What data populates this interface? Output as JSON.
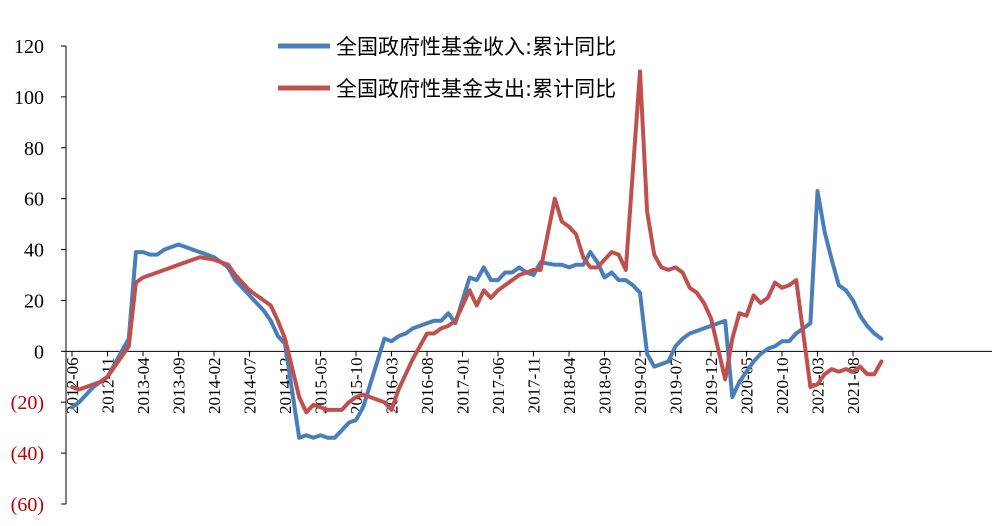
{
  "chart_data": {
    "type": "line",
    "title": "",
    "xlabel": "",
    "ylabel": "",
    "ylim": [
      -60,
      120
    ],
    "y_ticks": [
      120,
      100,
      80,
      60,
      40,
      20,
      0,
      -20,
      -40,
      -60
    ],
    "y_tick_labels": [
      "120",
      "100",
      "80",
      "60",
      "40",
      "20",
      "0",
      "(20)",
      "(40)",
      "(60)"
    ],
    "negative_tick_color": "#c00000",
    "grid": false,
    "legend_position": "top-center",
    "x_start": "2012-06",
    "x_tick_labels": [
      "2012-06",
      "2012-11",
      "2013-04",
      "2013-09",
      "2014-02",
      "2014-07",
      "2014-12",
      "2015-05",
      "2015-10",
      "2016-03",
      "2016-08",
      "2017-01",
      "2017-06",
      "2017-11",
      "2018-04",
      "2018-09",
      "2019-02",
      "2019-07",
      "2019-12",
      "2020-05",
      "2020-10",
      "2021-03",
      "2021-08"
    ],
    "series": [
      {
        "name": "全国政府性基金收入:累计同比",
        "color": "#4a7ebb",
        "points": [
          [
            "2012-06",
            -22
          ],
          [
            "2012-07",
            -20
          ],
          [
            "2012-08",
            -17
          ],
          [
            "2012-09",
            -14
          ],
          [
            "2012-10",
            -12
          ],
          [
            "2012-11",
            -10
          ],
          [
            "2013-02",
            5
          ],
          [
            "2013-03",
            39
          ],
          [
            "2013-04",
            39
          ],
          [
            "2013-05",
            38
          ],
          [
            "2013-06",
            38
          ],
          [
            "2013-07",
            40
          ],
          [
            "2013-08",
            41
          ],
          [
            "2013-09",
            42
          ],
          [
            "2013-10",
            41
          ],
          [
            "2013-11",
            40
          ],
          [
            "2013-12",
            39
          ],
          [
            "2014-02",
            37
          ],
          [
            "2014-03",
            35
          ],
          [
            "2014-04",
            33
          ],
          [
            "2014-05",
            28
          ],
          [
            "2014-06",
            25
          ],
          [
            "2014-07",
            22
          ],
          [
            "2014-08",
            19
          ],
          [
            "2014-09",
            16
          ],
          [
            "2014-10",
            12
          ],
          [
            "2014-11",
            6
          ],
          [
            "2014-12",
            3
          ],
          [
            "2015-02",
            -34
          ],
          [
            "2015-03",
            -33
          ],
          [
            "2015-04",
            -34
          ],
          [
            "2015-05",
            -33
          ],
          [
            "2015-06",
            -34
          ],
          [
            "2015-07",
            -34
          ],
          [
            "2015-08",
            -31
          ],
          [
            "2015-09",
            -28
          ],
          [
            "2015-10",
            -27
          ],
          [
            "2015-11",
            -22
          ],
          [
            "2015-12",
            -13
          ],
          [
            "2016-02",
            5
          ],
          [
            "2016-03",
            4
          ],
          [
            "2016-04",
            6
          ],
          [
            "2016-05",
            7
          ],
          [
            "2016-06",
            9
          ],
          [
            "2016-07",
            10
          ],
          [
            "2016-08",
            11
          ],
          [
            "2016-09",
            12
          ],
          [
            "2016-10",
            12
          ],
          [
            "2016-11",
            15
          ],
          [
            "2016-12",
            11
          ],
          [
            "2017-02",
            29
          ],
          [
            "2017-03",
            28
          ],
          [
            "2017-04",
            33
          ],
          [
            "2017-05",
            28
          ],
          [
            "2017-06",
            28
          ],
          [
            "2017-07",
            31
          ],
          [
            "2017-08",
            31
          ],
          [
            "2017-09",
            33
          ],
          [
            "2017-10",
            31
          ],
          [
            "2017-11",
            30
          ],
          [
            "2017-12",
            35
          ],
          [
            "2018-02",
            34
          ],
          [
            "2018-03",
            34
          ],
          [
            "2018-04",
            33
          ],
          [
            "2018-05",
            34
          ],
          [
            "2018-06",
            34
          ],
          [
            "2018-07",
            39
          ],
          [
            "2018-08",
            35
          ],
          [
            "2018-09",
            29
          ],
          [
            "2018-10",
            31
          ],
          [
            "2018-11",
            28
          ],
          [
            "2018-12",
            28
          ],
          [
            "2019-01",
            26
          ],
          [
            "2019-02",
            23
          ],
          [
            "2019-03",
            -1
          ],
          [
            "2019-04",
            -6
          ],
          [
            "2019-05",
            -5
          ],
          [
            "2019-06",
            -4
          ],
          [
            "2019-07",
            2
          ],
          [
            "2019-08",
            5
          ],
          [
            "2019-09",
            7
          ],
          [
            "2019-10",
            8
          ],
          [
            "2019-11",
            9
          ],
          [
            "2019-12",
            10
          ],
          [
            "2020-02",
            12
          ],
          [
            "2020-03",
            -18
          ],
          [
            "2020-04",
            -12
          ],
          [
            "2020-05",
            -8
          ],
          [
            "2020-06",
            -4
          ],
          [
            "2020-07",
            -1
          ],
          [
            "2020-08",
            1
          ],
          [
            "2020-09",
            2
          ],
          [
            "2020-10",
            4
          ],
          [
            "2020-11",
            4
          ],
          [
            "2020-12",
            7
          ],
          [
            "2021-02",
            11
          ],
          [
            "2021-03",
            63
          ],
          [
            "2021-04",
            47
          ],
          [
            "2021-05",
            36
          ],
          [
            "2021-06",
            26
          ],
          [
            "2021-07",
            24
          ],
          [
            "2021-08",
            20
          ],
          [
            "2021-09",
            14
          ],
          [
            "2021-10",
            10
          ],
          [
            "2021-11",
            7
          ],
          [
            "2021-12",
            5
          ]
        ]
      },
      {
        "name": "全国政府性基金支出:累计同比",
        "color": "#c0504d",
        "points": [
          [
            "2012-06",
            -14
          ],
          [
            "2012-07",
            -15
          ],
          [
            "2012-08",
            -14
          ],
          [
            "2012-09",
            -13
          ],
          [
            "2012-10",
            -12
          ],
          [
            "2012-11",
            -10
          ],
          [
            "2013-02",
            2
          ],
          [
            "2013-03",
            27
          ],
          [
            "2013-04",
            29
          ],
          [
            "2013-05",
            30
          ],
          [
            "2013-06",
            31
          ],
          [
            "2013-07",
            32
          ],
          [
            "2013-08",
            33
          ],
          [
            "2013-09",
            34
          ],
          [
            "2013-10",
            35
          ],
          [
            "2013-11",
            36
          ],
          [
            "2013-12",
            37
          ],
          [
            "2014-02",
            36
          ],
          [
            "2014-03",
            35
          ],
          [
            "2014-04",
            34
          ],
          [
            "2014-05",
            30
          ],
          [
            "2014-06",
            27
          ],
          [
            "2014-07",
            24
          ],
          [
            "2014-08",
            22
          ],
          [
            "2014-09",
            20
          ],
          [
            "2014-10",
            18
          ],
          [
            "2014-11",
            12
          ],
          [
            "2014-12",
            5
          ],
          [
            "2015-02",
            -18
          ],
          [
            "2015-03",
            -24
          ],
          [
            "2015-04",
            -21
          ],
          [
            "2015-05",
            -22
          ],
          [
            "2015-06",
            -23
          ],
          [
            "2015-07",
            -23
          ],
          [
            "2015-08",
            -23
          ],
          [
            "2015-09",
            -20
          ],
          [
            "2015-10",
            -18
          ],
          [
            "2015-11",
            -17
          ],
          [
            "2015-12",
            -18
          ],
          [
            "2016-02",
            -20
          ],
          [
            "2016-03",
            -23
          ],
          [
            "2016-04",
            -15
          ],
          [
            "2016-05",
            -9
          ],
          [
            "2016-06",
            -3
          ],
          [
            "2016-07",
            2
          ],
          [
            "2016-08",
            7
          ],
          [
            "2016-09",
            7
          ],
          [
            "2016-10",
            9
          ],
          [
            "2016-11",
            10
          ],
          [
            "2016-12",
            12
          ],
          [
            "2017-02",
            24
          ],
          [
            "2017-03",
            18
          ],
          [
            "2017-04",
            24
          ],
          [
            "2017-05",
            21
          ],
          [
            "2017-06",
            24
          ],
          [
            "2017-07",
            26
          ],
          [
            "2017-08",
            28
          ],
          [
            "2017-09",
            30
          ],
          [
            "2017-10",
            31
          ],
          [
            "2017-11",
            32
          ],
          [
            "2017-12",
            32
          ],
          [
            "2018-02",
            60
          ],
          [
            "2018-03",
            51
          ],
          [
            "2018-04",
            49
          ],
          [
            "2018-05",
            46
          ],
          [
            "2018-06",
            37
          ],
          [
            "2018-07",
            33
          ],
          [
            "2018-08",
            33
          ],
          [
            "2018-09",
            36
          ],
          [
            "2018-10",
            39
          ],
          [
            "2018-11",
            38
          ],
          [
            "2018-12",
            32
          ],
          [
            "2019-02",
            110
          ],
          [
            "2019-03",
            55
          ],
          [
            "2019-04",
            38
          ],
          [
            "2019-05",
            33
          ],
          [
            "2019-06",
            32
          ],
          [
            "2019-07",
            33
          ],
          [
            "2019-08",
            31
          ],
          [
            "2019-09",
            25
          ],
          [
            "2019-10",
            23
          ],
          [
            "2019-11",
            19
          ],
          [
            "2019-12",
            13
          ],
          [
            "2020-02",
            -11
          ],
          [
            "2020-03",
            5
          ],
          [
            "2020-04",
            15
          ],
          [
            "2020-05",
            14
          ],
          [
            "2020-06",
            22
          ],
          [
            "2020-07",
            19
          ],
          [
            "2020-08",
            21
          ],
          [
            "2020-09",
            27
          ],
          [
            "2020-10",
            25
          ],
          [
            "2020-11",
            26
          ],
          [
            "2020-12",
            28
          ],
          [
            "2021-02",
            -14
          ],
          [
            "2021-03",
            -13
          ],
          [
            "2021-04",
            -9
          ],
          [
            "2021-05",
            -7
          ],
          [
            "2021-06",
            -8
          ],
          [
            "2021-07",
            -7
          ],
          [
            "2021-08",
            -8
          ],
          [
            "2021-09",
            -6
          ],
          [
            "2021-10",
            -9
          ],
          [
            "2021-11",
            -9
          ],
          [
            "2021-12",
            -4
          ]
        ]
      }
    ]
  }
}
